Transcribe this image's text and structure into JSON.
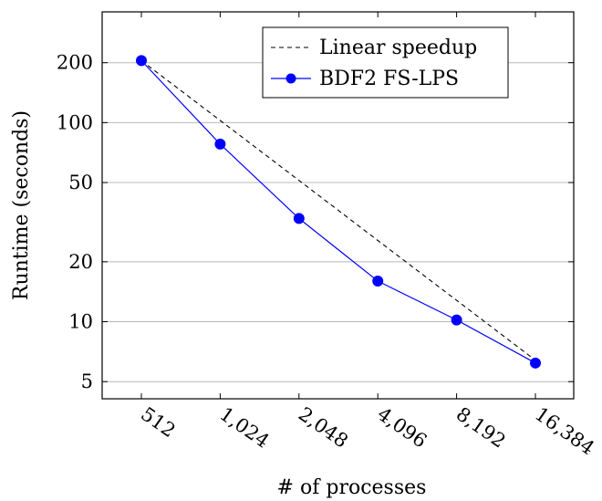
{
  "chart_data": {
    "type": "line",
    "title": "",
    "xlabel": "# of processes",
    "ylabel": "Runtime (seconds)",
    "x_scale": "log2",
    "y_scale": "log",
    "categories": [
      "512",
      "1,024",
      "2,048",
      "4,096",
      "8,192",
      "16,384"
    ],
    "x": [
      512,
      1024,
      2048,
      4096,
      8192,
      16384
    ],
    "y_ticks": [
      5,
      10,
      20,
      50,
      100,
      200
    ],
    "y_tick_labels": [
      "5",
      "10",
      "20",
      "50",
      "100",
      "200"
    ],
    "ylim": [
      4.1,
      360
    ],
    "grid": "horizontal",
    "legend_position": "top-right",
    "series": [
      {
        "name": "Linear speedup",
        "style": "dashed",
        "color": "#000000",
        "marker": "none",
        "values": [
          205,
          102.5,
          51.25,
          25.6,
          12.8,
          6.4
        ]
      },
      {
        "name": "BDF2 FS-LPS",
        "style": "solid",
        "color": "#0000ff",
        "marker": "circle",
        "values": [
          205,
          78,
          33,
          16,
          10.2,
          6.2
        ]
      }
    ]
  }
}
